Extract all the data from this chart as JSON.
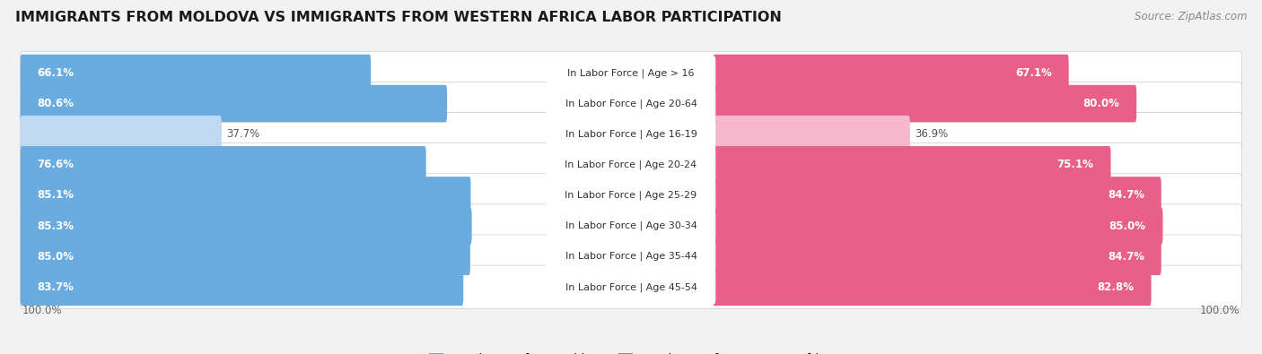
{
  "title": "IMMIGRANTS FROM MOLDOVA VS IMMIGRANTS FROM WESTERN AFRICA LABOR PARTICIPATION",
  "source": "Source: ZipAtlas.com",
  "categories": [
    "In Labor Force | Age > 16",
    "In Labor Force | Age 20-64",
    "In Labor Force | Age 16-19",
    "In Labor Force | Age 20-24",
    "In Labor Force | Age 25-29",
    "In Labor Force | Age 30-34",
    "In Labor Force | Age 35-44",
    "In Labor Force | Age 45-54"
  ],
  "moldova_values": [
    66.1,
    80.6,
    37.7,
    76.6,
    85.1,
    85.3,
    85.0,
    83.7
  ],
  "western_africa_values": [
    67.1,
    80.0,
    36.9,
    75.1,
    84.7,
    85.0,
    84.7,
    82.8
  ],
  "moldova_color": "#6aabe0",
  "western_africa_color": "#e8608a",
  "moldova_color_light": "#c0d9f0",
  "western_africa_color_light": "#f5b8cc",
  "row_bg_color": "#e8e8e8",
  "bar_inner_bg": "#f5f5f5",
  "bg_color": "#f2f2f2",
  "legend_moldova": "Immigrants from Moldova",
  "legend_western_africa": "Immigrants from Western Africa",
  "title_fontsize": 11.5,
  "label_fontsize": 8.5,
  "category_fontsize": 8.0,
  "legend_fontsize": 9.5,
  "source_fontsize": 8.5
}
